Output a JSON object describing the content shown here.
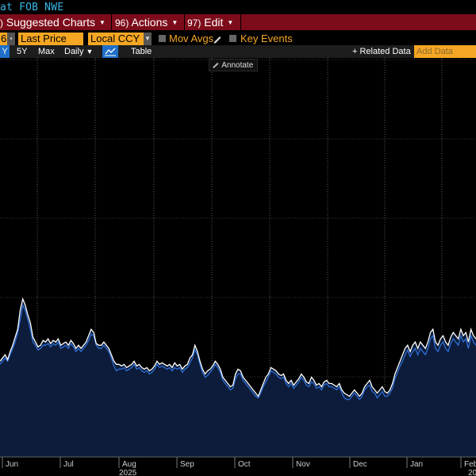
{
  "window": {
    "title": "at FOB NWE"
  },
  "menu": {
    "suggested": "Suggested Charts",
    "actions_num": "96)",
    "actions": "Actions",
    "edit_num": "97)",
    "edit": "Edit"
  },
  "toolbar": {
    "partial_field": "6",
    "last_price": "Last Price",
    "currency": "Local CCY",
    "mov_avgs": "Mov Avgs",
    "key_events": "Key Events"
  },
  "toolbar2": {
    "partial_range": "Y",
    "range_5y": "5Y",
    "range_max": "Max",
    "frequency": "Daily",
    "table": "Table",
    "related_data": "+ Related Data",
    "add_data_placeholder": "Add Data"
  },
  "annotate_label": "Annotate",
  "colors": {
    "menu_bg": "#7d0c1a",
    "accent_orange": "#f5a623",
    "title_cyan": "#38b6e6",
    "series_white": "#ffffff",
    "series_blue": "#2f6fd6",
    "area_fill": "#0c1c3a"
  },
  "chart_data": {
    "type": "line",
    "x_ticks": [
      "Jun",
      "Jul",
      "Aug",
      "Sep",
      "Oct",
      "Nov",
      "Dec",
      "Jan",
      "Feb"
    ],
    "x_year_labels": [
      "2025",
      "20"
    ],
    "grid": "vertical dotted",
    "series": [
      {
        "color": "#ffffff",
        "values": [
          60,
          62,
          64,
          61,
          66,
          70,
          75,
          80,
          92,
          99,
          95,
          89,
          84,
          75,
          72,
          69,
          70,
          73,
          72,
          74,
          71,
          73,
          72,
          74,
          70,
          71,
          72,
          70,
          73,
          71,
          68,
          70,
          68,
          70,
          72,
          76,
          80,
          78,
          71,
          70,
          70,
          72,
          70,
          68,
          64,
          60,
          58,
          58,
          57,
          58,
          56,
          57,
          58,
          60,
          57,
          58,
          56,
          55,
          56,
          54,
          55,
          57,
          60,
          58,
          59,
          58,
          57,
          58,
          56,
          59,
          57,
          58,
          55,
          57,
          58,
          62,
          64,
          70,
          66,
          60,
          55,
          52,
          54,
          55,
          57,
          60,
          58,
          55,
          50,
          48,
          46,
          44,
          45,
          52,
          55,
          54,
          50,
          48,
          46,
          44,
          42,
          40,
          38,
          42,
          46,
          50,
          52,
          56,
          55,
          54,
          52,
          51,
          52,
          48,
          46,
          48,
          45,
          47,
          49,
          52,
          50,
          47,
          46,
          50,
          48,
          45,
          46,
          44,
          47,
          48,
          46,
          46,
          45,
          44,
          46,
          42,
          40,
          39,
          38,
          40,
          42,
          40,
          38,
          40,
          44,
          46,
          48,
          44,
          42,
          40,
          42,
          44,
          41,
          40,
          42,
          46,
          52,
          56,
          60,
          64,
          68,
          70,
          66,
          70,
          72,
          68,
          72,
          70,
          68,
          72,
          78,
          80,
          72,
          70,
          74,
          76,
          72,
          70,
          75,
          78,
          76,
          74,
          80,
          76,
          78,
          72,
          80,
          76,
          74
        ]
      },
      {
        "color": "#2f6fd6",
        "values": [
          58,
          60,
          62,
          60,
          64,
          68,
          72,
          78,
          86,
          95,
          92,
          86,
          80,
          72,
          70,
          67,
          68,
          70,
          70,
          71,
          69,
          71,
          70,
          72,
          68,
          69,
          70,
          68,
          71,
          69,
          66,
          68,
          66,
          68,
          70,
          73,
          77,
          76,
          70,
          68,
          68,
          70,
          68,
          66,
          62,
          57,
          54,
          55,
          55,
          56,
          54,
          55,
          56,
          58,
          55,
          56,
          54,
          53,
          54,
          52,
          53,
          55,
          58,
          56,
          57,
          56,
          55,
          56,
          54,
          56,
          55,
          56,
          53,
          55,
          56,
          59,
          62,
          67,
          64,
          58,
          53,
          50,
          51,
          53,
          55,
          58,
          56,
          53,
          48,
          46,
          44,
          42,
          43,
          49,
          52,
          52,
          48,
          46,
          44,
          42,
          40,
          38,
          37,
          40,
          44,
          47,
          50,
          54,
          53,
          52,
          50,
          49,
          50,
          46,
          44,
          46,
          43,
          45,
          47,
          50,
          48,
          45,
          44,
          47,
          46,
          43,
          44,
          42,
          45,
          46,
          44,
          44,
          43,
          42,
          44,
          40,
          37,
          36,
          36,
          38,
          40,
          38,
          36,
          38,
          42,
          44,
          45,
          41,
          40,
          37,
          39,
          41,
          38,
          38,
          40,
          43,
          49,
          53,
          57,
          60,
          64,
          67,
          63,
          66,
          68,
          64,
          68,
          66,
          64,
          68,
          74,
          76,
          68,
          66,
          70,
          72,
          68,
          66,
          71,
          74,
          72,
          70,
          76,
          72,
          74,
          68,
          76,
          72,
          70
        ]
      }
    ],
    "grid_on": true,
    "legend": "none"
  }
}
